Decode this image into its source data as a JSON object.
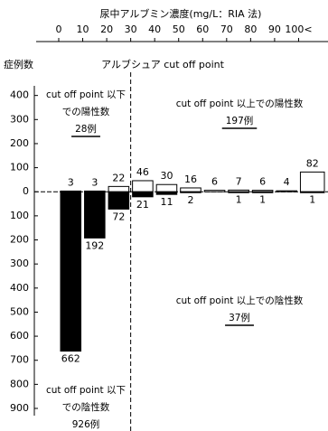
{
  "chart_data": {
    "type": "bar",
    "title": "尿中アルブミン濃度(mg/L：RIA 法)",
    "y_label": "症例数",
    "cutoff_label": "アルブシュア cut off point",
    "cutoff": 30,
    "x": [
      0,
      10,
      20,
      30,
      40,
      50,
      60,
      70,
      80,
      90,
      100
    ],
    "xlim": [
      0,
      110
    ],
    "xticks": [
      0,
      10,
      20,
      30,
      40,
      50,
      60,
      70,
      80,
      90,
      {
        "value": 100,
        "label": "100<"
      }
    ],
    "ylim": [
      -930,
      440
    ],
    "yticks": [
      400,
      300,
      200,
      100,
      0,
      {
        "value": -100,
        "label": "100"
      },
      {
        "value": -200,
        "label": "200"
      },
      {
        "value": -300,
        "label": "300"
      },
      {
        "value": -400,
        "label": "400"
      },
      {
        "value": -500,
        "label": "500"
      },
      {
        "value": -600,
        "label": "600"
      },
      {
        "value": -700,
        "label": "700"
      },
      {
        "value": -800,
        "label": "800"
      },
      {
        "value": -900,
        "label": "900"
      }
    ],
    "series": [
      {
        "color": "#ffffff",
        "values": [
          3,
          3,
          22,
          46,
          30,
          16,
          6,
          7,
          6,
          4,
          82
        ]
      },
      {
        "color": "#000000",
        "values": [
          -662,
          -192,
          -72,
          -21,
          -11,
          -2,
          null,
          -1,
          -1,
          null,
          -1
        ],
        "value_labels": [
          "662",
          "192",
          "72",
          "21",
          "11",
          "2",
          null,
          "1",
          "1",
          null,
          "1"
        ]
      }
    ],
    "annotations": [
      {
        "lines": [
          "cut off point 以下",
          "での陽性数"
        ],
        "count": "28例"
      },
      {
        "lines": [
          "cut off point 以上での陽性数"
        ],
        "count": "197例"
      },
      {
        "lines": [
          "cut off point 以上での陰性数"
        ],
        "count": "37例"
      },
      {
        "lines": [
          "cut off point 以下",
          "での陰性数"
        ],
        "count": "926例"
      }
    ]
  }
}
